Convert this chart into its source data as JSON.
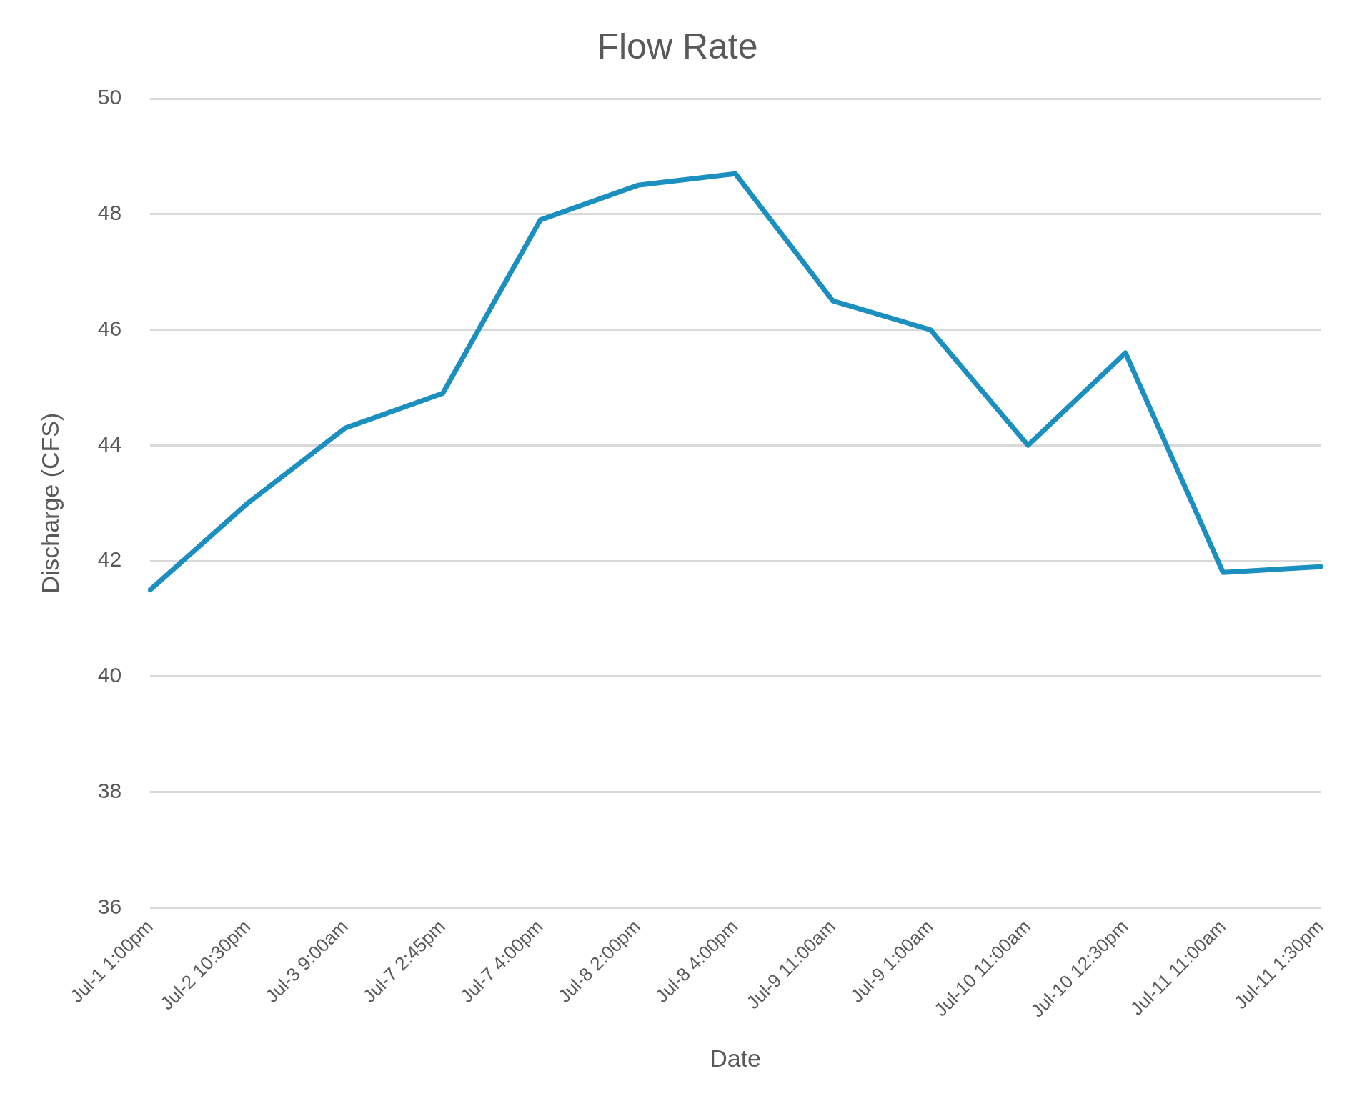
{
  "chart_data": {
    "type": "line",
    "title": "Flow Rate",
    "xlabel": "Date",
    "ylabel": "Discharge (CFS)",
    "categories": [
      "Jul-1 1:00pm",
      "Jul-2 10:30pm",
      "Jul-3 9:00am",
      "Jul-7 2:45pm",
      "Jul-7 4:00pm",
      "Jul-8 2:00pm",
      "Jul-8 4:00pm",
      "Jul-9 11:00am",
      "Jul-9 1:00am",
      "Jul-10 11:00am",
      "Jul-10 12:30pm",
      "Jul-11 11:00am",
      "Jul-11 1:30pm"
    ],
    "series": [
      {
        "color": "#1b8fc0",
        "values": [
          41.5,
          43.0,
          44.3,
          44.9,
          47.9,
          48.5,
          48.7,
          46.5,
          46.0,
          44.0,
          45.6,
          41.8,
          41.9
        ]
      }
    ],
    "ylim": [
      36,
      50
    ],
    "yticks": [
      36,
      38,
      40,
      42,
      44,
      46,
      48,
      50
    ],
    "grid": "y",
    "legend": false,
    "marker": "none",
    "line_style": "solid"
  }
}
